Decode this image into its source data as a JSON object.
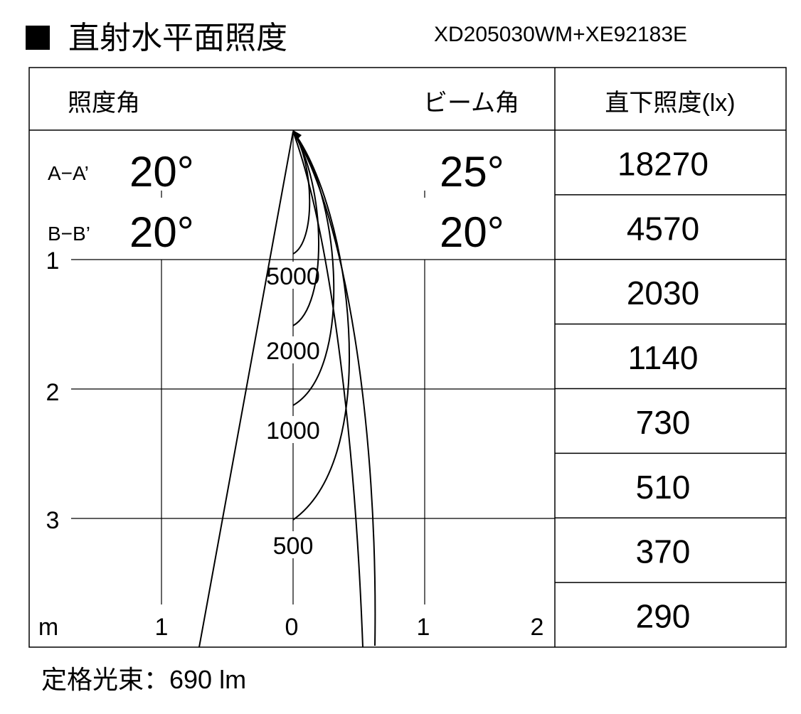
{
  "header": {
    "title": "直射水平面照度",
    "model": "XD205030WM+XE92183E"
  },
  "table": {
    "columns": [
      "照度角",
      "ビーム角",
      "直下照度(lx)"
    ],
    "angles": [
      {
        "name": "A−A’",
        "illuminance_angle": "20°",
        "beam_angle": "25°"
      },
      {
        "name": "B−B’",
        "illuminance_angle": "20°",
        "beam_angle": "20°"
      }
    ],
    "direct_illuminance": [
      18270,
      4570,
      2030,
      1140,
      730,
      510,
      370,
      290
    ]
  },
  "diagram": {
    "depth_labels": [
      1,
      2,
      3
    ],
    "unit": "m",
    "width_labels": [
      1,
      0,
      1,
      2
    ],
    "contour_labels": [
      5000,
      2000,
      1000,
      500
    ]
  },
  "footer": "定格光束：690 lm"
}
